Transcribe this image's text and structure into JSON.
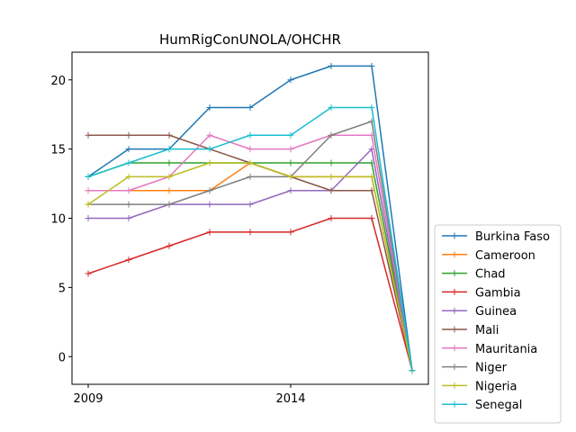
{
  "chart_data": {
    "type": "line",
    "title": "HumRigConUNOLA/OHCHR",
    "xlabel": "",
    "ylabel": "",
    "x": [
      2009,
      2010,
      2011,
      2012,
      2013,
      2014,
      2015,
      2016,
      2017
    ],
    "xlim": [
      2008.6,
      2017.4
    ],
    "ylim": [
      -2,
      22
    ],
    "xticks": [
      2009,
      2014
    ],
    "yticks": [
      0,
      5,
      10,
      15,
      20
    ],
    "grid": false,
    "legend_position": "bottom-right outside",
    "series": [
      {
        "name": "Burkina Faso",
        "color": "#1f77b4",
        "values": [
          13,
          15,
          15,
          18,
          18,
          20,
          21,
          21,
          -1
        ]
      },
      {
        "name": "Cameroon",
        "color": "#ff7f0e",
        "values": [
          12,
          12,
          12,
          12,
          14,
          13,
          13,
          13,
          -1
        ]
      },
      {
        "name": "Chad",
        "color": "#2ca02c",
        "values": [
          13,
          14,
          14,
          14,
          14,
          14,
          14,
          14,
          -1
        ]
      },
      {
        "name": "Gambia",
        "color": "#d62728",
        "values": [
          6,
          7,
          8,
          9,
          9,
          9,
          10,
          10,
          -1
        ]
      },
      {
        "name": "Guinea",
        "color": "#9467bd",
        "values": [
          10,
          10,
          11,
          11,
          11,
          12,
          12,
          15,
          -1
        ]
      },
      {
        "name": "Mali",
        "color": "#8c564b",
        "values": [
          16,
          16,
          16,
          15,
          14,
          13,
          12,
          12,
          -1
        ]
      },
      {
        "name": "Mauritania",
        "color": "#e377c2",
        "values": [
          12,
          12,
          13,
          16,
          15,
          15,
          16,
          16,
          -1
        ]
      },
      {
        "name": "Niger",
        "color": "#7f7f7f",
        "values": [
          11,
          11,
          11,
          12,
          13,
          13,
          16,
          17,
          -1
        ]
      },
      {
        "name": "Nigeria",
        "color": "#bcbd22",
        "values": [
          11,
          13,
          13,
          14,
          14,
          13,
          13,
          13,
          -1
        ]
      },
      {
        "name": "Senegal",
        "color": "#17becf",
        "values": [
          13,
          14,
          15,
          15,
          16,
          16,
          18,
          18,
          -1
        ]
      }
    ]
  }
}
